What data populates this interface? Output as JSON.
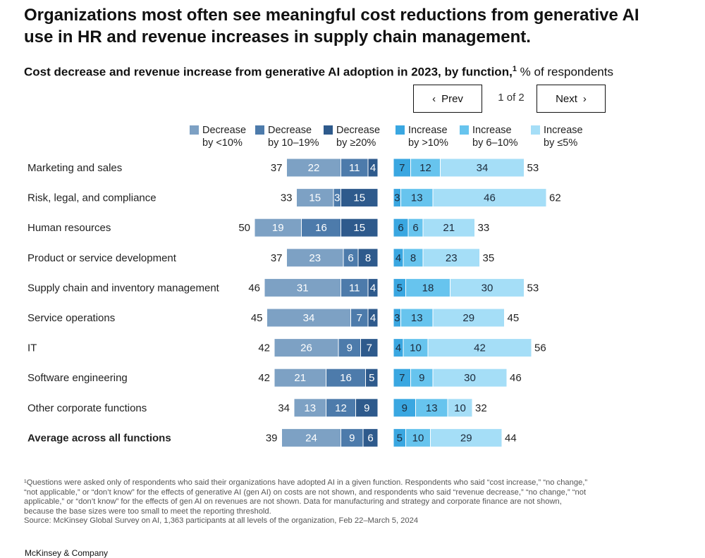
{
  "headline": "Organizations most often see meaningful cost reductions from generative AI use in HR and revenue increases in supply chain management.",
  "subtitle": {
    "bold": "Cost decrease and revenue increase from generative AI adoption in 2023, by function,",
    "sup": "1",
    "rest": " % of respondents"
  },
  "pager": {
    "prev_label": "Prev",
    "next_label": "Next",
    "count": "1 of 2"
  },
  "legend": [
    {
      "line1": "Decrease",
      "line2": "by <10%",
      "color": "#7da1c4"
    },
    {
      "line1": "Decrease",
      "line2": "by 10–19%",
      "color": "#4d7bab"
    },
    {
      "line1": "Decrease",
      "line2": "by ≥20%",
      "color": "#2e5a8c"
    },
    {
      "line1": "Increase",
      "line2": "by >10%",
      "color": "#3aa7e1"
    },
    {
      "line1": "Increase",
      "line2": "by 6–10%",
      "color": "#67c4ee"
    },
    {
      "line1": "Increase",
      "line2": "by ≤5%",
      "color": "#a5def7"
    }
  ],
  "chart_data": {
    "type": "bar",
    "orientation": "horizontal",
    "stacked": true,
    "diverging": true,
    "title": "Cost decrease and revenue increase from generative AI adoption in 2023, by function",
    "unit": "% of respondents",
    "categories": [
      "Marketing and sales",
      "Risk, legal, and compliance",
      "Human resources",
      "Product or service development",
      "Supply chain and inventory management",
      "Service operations",
      "IT",
      "Software engineering",
      "Other corporate functions",
      "Average across all functions"
    ],
    "cost_decrease": {
      "series": [
        {
          "name": "Decrease by <10%",
          "color": "#7da1c4",
          "values": [
            22,
            15,
            19,
            23,
            31,
            34,
            26,
            21,
            13,
            24
          ]
        },
        {
          "name": "Decrease by 10–19%",
          "color": "#4d7bab",
          "values": [
            11,
            3,
            16,
            6,
            11,
            7,
            9,
            16,
            12,
            9
          ]
        },
        {
          "name": "Decrease by ≥20%",
          "color": "#2e5a8c",
          "values": [
            4,
            15,
            15,
            8,
            4,
            4,
            7,
            5,
            9,
            6
          ]
        }
      ],
      "totals": [
        37,
        33,
        50,
        37,
        46,
        45,
        42,
        42,
        34,
        39
      ]
    },
    "revenue_increase": {
      "series": [
        {
          "name": "Increase by >10%",
          "color": "#3aa7e1",
          "values": [
            7,
            3,
            6,
            4,
            5,
            3,
            4,
            7,
            9,
            5
          ]
        },
        {
          "name": "Increase by 6–10%",
          "color": "#67c4ee",
          "values": [
            12,
            13,
            6,
            8,
            18,
            13,
            10,
            9,
            13,
            10
          ]
        },
        {
          "name": "Increase by ≤5%",
          "color": "#a5def7",
          "values": [
            34,
            46,
            21,
            23,
            30,
            29,
            42,
            30,
            10,
            29
          ]
        }
      ],
      "totals": [
        53,
        62,
        33,
        35,
        53,
        45,
        56,
        46,
        32,
        44
      ]
    },
    "bold_category": "Average across all functions"
  },
  "footnote": {
    "lines": [
      "¹Questions were asked only of respondents who said their organizations have adopted AI in a given function. Respondents who said “cost increase,” “no change,”",
      "“not applicable,” or “don’t know” for the effects of generative AI (gen AI) on costs are not shown, and respondents who said “revenue decrease,” “no change,” “not",
      "applicable,” or “don’t know” for the effects of gen AI on revenues are not shown. Data for manufacturing and strategy and corporate finance are not shown,",
      "because the base sizes were too small to meet the reporting threshold."
    ],
    "source": "Source: McKinsey Global Survey on AI, 1,363 participants at all levels of the organization, Feb 22–March 5, 2024"
  },
  "brand": "McKinsey & Company"
}
